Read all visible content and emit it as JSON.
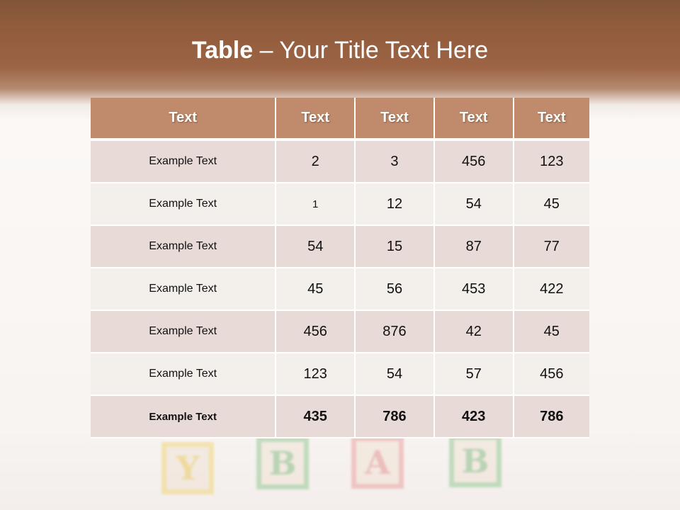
{
  "title": {
    "bold": "Table",
    "rest": " – Your Title Text Here"
  },
  "background_blocks": [
    "Y",
    "B",
    "A",
    "B"
  ],
  "table": {
    "headers": [
      "Text",
      "Text",
      "Text",
      "Text",
      "Text"
    ],
    "rows": [
      [
        "Example Text",
        "2",
        "3",
        "456",
        "123"
      ],
      [
        "Example Text",
        "1",
        "12",
        "54",
        "45"
      ],
      [
        "Example Text",
        "54",
        "15",
        "87",
        "77"
      ],
      [
        "Example Text",
        "45",
        "56",
        "453",
        "422"
      ],
      [
        "Example Text",
        "456",
        "876",
        "42",
        "45"
      ],
      [
        "Example Text",
        "123",
        "54",
        "57",
        "456"
      ],
      [
        "Example Text",
        "435",
        "786",
        "423",
        "786"
      ]
    ]
  },
  "colors": {
    "header": "#c08b6c",
    "row_odd": "#e8dad6",
    "row_even": "#f3efeb",
    "title_band": "#915c3c"
  }
}
